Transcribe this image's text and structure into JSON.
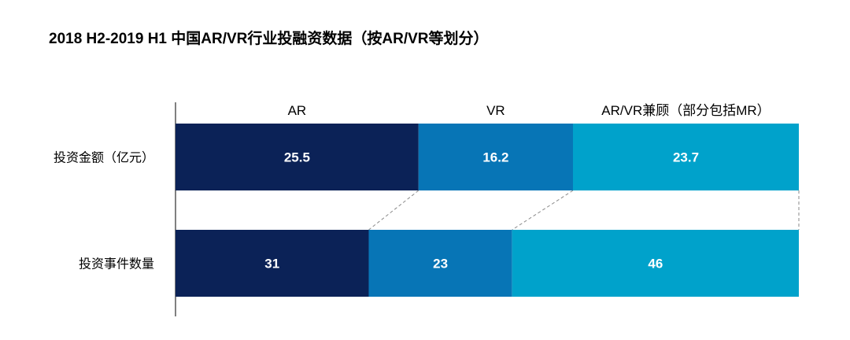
{
  "title": "2018 H2-2019 H1 中国AR/VR行业投融资数据（按AR/VR等划分）",
  "chart_data": {
    "type": "bar",
    "orientation": "horizontal",
    "stacking": "percent",
    "title": "2018 H2-2019 H1 中国AR/VR行业投融资数据（按AR/VR等划分）",
    "categories": [
      "投资金额（亿元）",
      "投资事件数量"
    ],
    "series": [
      {
        "name": "AR",
        "values": [
          25.5,
          31
        ],
        "color": "#0b2257"
      },
      {
        "name": "VR",
        "values": [
          16.2,
          23
        ],
        "color": "#0775b6"
      },
      {
        "name": "AR/VR兼顾（部分包括MR）",
        "values": [
          23.7,
          46
        ],
        "color": "#00a2cb"
      }
    ],
    "legend_position": "top",
    "grid": false,
    "connector_lines": true
  }
}
